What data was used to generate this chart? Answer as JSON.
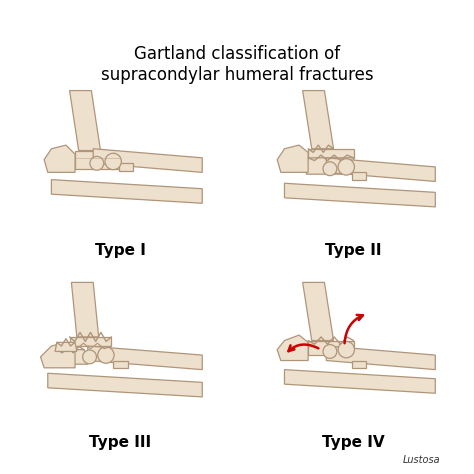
{
  "title_line1": "Gartland classification of",
  "title_line2": "supracondylar humeral fractures",
  "title_fontsize": 12,
  "label_fontsize": 11,
  "background_color": "#ffffff",
  "bone_fill": "#ede0cc",
  "bone_edge": "#b0957a",
  "bone_edge_width": 0.9,
  "labels": [
    "Type I",
    "Type II",
    "Type III",
    "Type IV"
  ],
  "arrow_color": "#cc0000",
  "signature": "Lustosa"
}
